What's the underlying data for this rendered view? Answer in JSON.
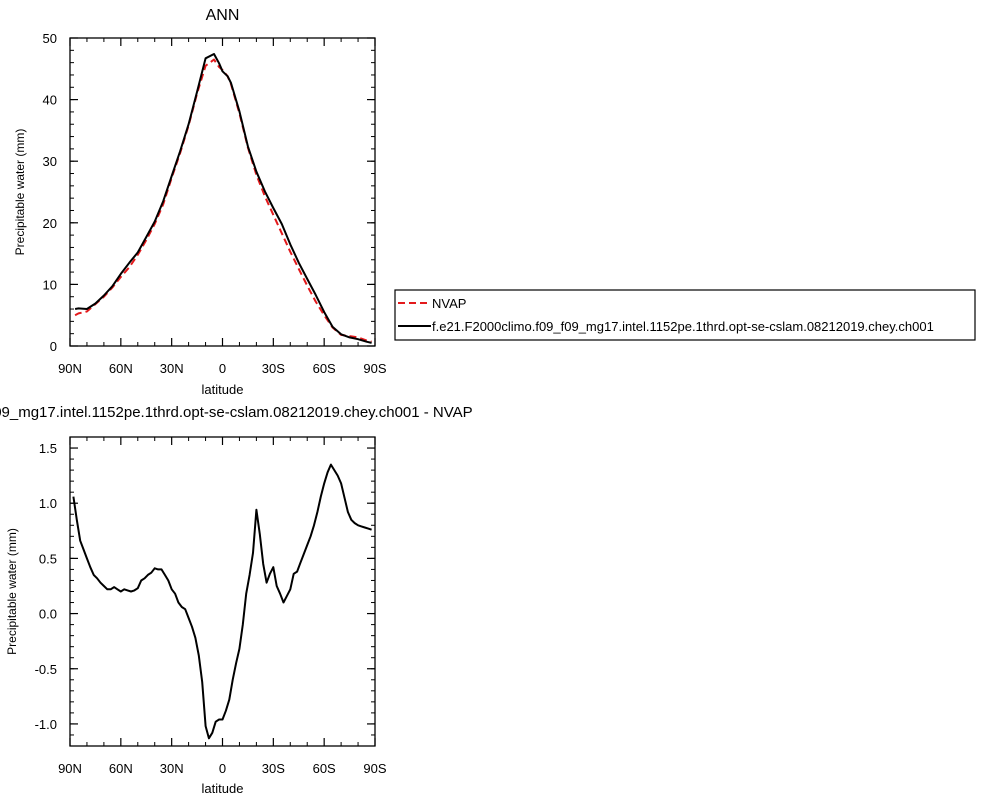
{
  "chart_data": [
    {
      "type": "line",
      "title": "ANN",
      "xlabel": "latitude",
      "ylabel": "Precipitable water (mm)",
      "xlim": [
        90,
        -90
      ],
      "ylim": [
        0,
        50
      ],
      "xticks": [
        90,
        60,
        30,
        0,
        -30,
        -60,
        -90
      ],
      "xtick_labels": [
        "90N",
        "60N",
        "30N",
        "0",
        "30S",
        "60S",
        "90S"
      ],
      "yticks": [
        0,
        10,
        20,
        30,
        40,
        50
      ],
      "ytick_labels": [
        "0",
        "10",
        "20",
        "30",
        "40",
        "50"
      ],
      "legend": {
        "placement": "right",
        "entries": [
          {
            "label": "NVAP",
            "color": "#e31a1c",
            "dash": "dashed"
          },
          {
            "label": "f.e21.F2000climo.f09_f09_mg17.intel.1152pe.1thrd.opt-se-cslam.08212019.chey.ch001",
            "color": "#000000",
            "dash": "solid"
          }
        ]
      },
      "series": [
        {
          "name": "NVAP",
          "color": "#e31a1c",
          "dash": "dashed",
          "x": [
            87,
            85,
            80,
            75,
            70,
            65,
            60,
            55,
            50,
            45,
            40,
            35,
            30,
            25,
            20,
            15,
            10,
            5,
            2,
            0,
            -3,
            -5,
            -10,
            -15,
            -20,
            -25,
            -30,
            -35,
            -40,
            -45,
            -50,
            -55,
            -60,
            -65,
            -70,
            -75,
            -80,
            -85,
            -88
          ],
          "y": [
            5.0,
            5.3,
            5.6,
            6.8,
            8.0,
            9.5,
            11.2,
            12.8,
            14.8,
            17.2,
            19.8,
            23.0,
            27.3,
            31.3,
            35.8,
            41.0,
            45.5,
            46.5,
            45.3,
            44.8,
            43.8,
            42.5,
            37.8,
            32.2,
            27.8,
            24.3,
            21.3,
            18.3,
            15.3,
            12.5,
            9.8,
            7.2,
            5.0,
            3.0,
            1.8,
            1.6,
            1.4,
            0.9,
            0.7
          ]
        },
        {
          "name": "f.e21.F2000climo.f09_f09_mg17.intel.1152pe.1thrd.opt-se-cslam.08212019.chey.ch001",
          "color": "#000000",
          "dash": "solid",
          "x": [
            87,
            85,
            80,
            75,
            70,
            65,
            60,
            55,
            50,
            45,
            40,
            35,
            30,
            25,
            20,
            15,
            10,
            5,
            2,
            0,
            -3,
            -5,
            -10,
            -15,
            -20,
            -25,
            -30,
            -35,
            -40,
            -45,
            -50,
            -55,
            -60,
            -65,
            -70,
            -75,
            -80,
            -85,
            -88
          ],
          "y": [
            6.0,
            6.1,
            6.0,
            6.9,
            8.2,
            9.7,
            11.7,
            13.5,
            15.2,
            17.7,
            20.2,
            23.5,
            27.6,
            31.6,
            36.0,
            41.3,
            46.7,
            47.4,
            45.9,
            44.6,
            43.8,
            42.7,
            38.1,
            32.4,
            28.3,
            25.1,
            22.4,
            19.8,
            16.5,
            13.5,
            10.9,
            8.3,
            5.5,
            3.1,
            1.9,
            1.4,
            1.1,
            0.7,
            0.5
          ]
        }
      ]
    },
    {
      "type": "line",
      "title": "9_f09_mg17.intel.1152pe.1thrd.opt-se-cslam.08212019.chey.ch001 - NVAP",
      "xlabel": "latitude",
      "ylabel": "Precipitable water (mm)",
      "xlim": [
        90,
        -90
      ],
      "ylim": [
        -1.2,
        1.6
      ],
      "xticks": [
        90,
        60,
        30,
        0,
        -30,
        -60,
        -90
      ],
      "xtick_labels": [
        "90N",
        "60N",
        "30N",
        "0",
        "30S",
        "60S",
        "90S"
      ],
      "yticks": [
        -1.0,
        -0.5,
        0.0,
        0.5,
        1.0,
        1.5
      ],
      "ytick_labels": [
        "-1.0",
        "-0.5",
        "0.0",
        "0.5",
        "1.0",
        "1.5"
      ],
      "series": [
        {
          "color": "#000000",
          "dash": "solid",
          "x": [
            88,
            86,
            84,
            82,
            80,
            78,
            76,
            74,
            72,
            70,
            68,
            66,
            64,
            62,
            60,
            58,
            56,
            54,
            52,
            50,
            48,
            46,
            44,
            42,
            40,
            38,
            36,
            34,
            32,
            30,
            28,
            26,
            24,
            22,
            20,
            18,
            16,
            14,
            12,
            10,
            8,
            6,
            4,
            2,
            0,
            -2,
            -4,
            -6,
            -8,
            -10,
            -12,
            -14,
            -16,
            -18,
            -20,
            -22,
            -24,
            -26,
            -28,
            -30,
            -32,
            -34,
            -36,
            -38,
            -40,
            -42,
            -44,
            -46,
            -48,
            -50,
            -52,
            -54,
            -56,
            -58,
            -60,
            -62,
            -64,
            -66,
            -68,
            -70,
            -72,
            -74,
            -76,
            -78,
            -80,
            -82,
            -84,
            -86,
            -88
          ],
          "y": [
            1.06,
            0.85,
            0.66,
            0.58,
            0.5,
            0.42,
            0.35,
            0.32,
            0.28,
            0.25,
            0.22,
            0.22,
            0.24,
            0.22,
            0.2,
            0.22,
            0.21,
            0.2,
            0.21,
            0.23,
            0.3,
            0.32,
            0.35,
            0.37,
            0.41,
            0.4,
            0.4,
            0.35,
            0.3,
            0.22,
            0.18,
            0.1,
            0.06,
            0.04,
            -0.04,
            -0.12,
            -0.22,
            -0.38,
            -0.62,
            -1.02,
            -1.13,
            -1.08,
            -0.98,
            -0.96,
            -0.96,
            -0.88,
            -0.78,
            -0.6,
            -0.45,
            -0.32,
            -0.1,
            0.18,
            0.35,
            0.55,
            0.94,
            0.72,
            0.45,
            0.28,
            0.36,
            0.42,
            0.25,
            0.18,
            0.1,
            0.16,
            0.22,
            0.36,
            0.38,
            0.46,
            0.54,
            0.62,
            0.7,
            0.8,
            0.92,
            1.06,
            1.18,
            1.28,
            1.35,
            1.3,
            1.25,
            1.18,
            1.05,
            0.92,
            0.85,
            0.82,
            0.8,
            0.79,
            0.78,
            0.77,
            0.76
          ]
        }
      ]
    }
  ]
}
